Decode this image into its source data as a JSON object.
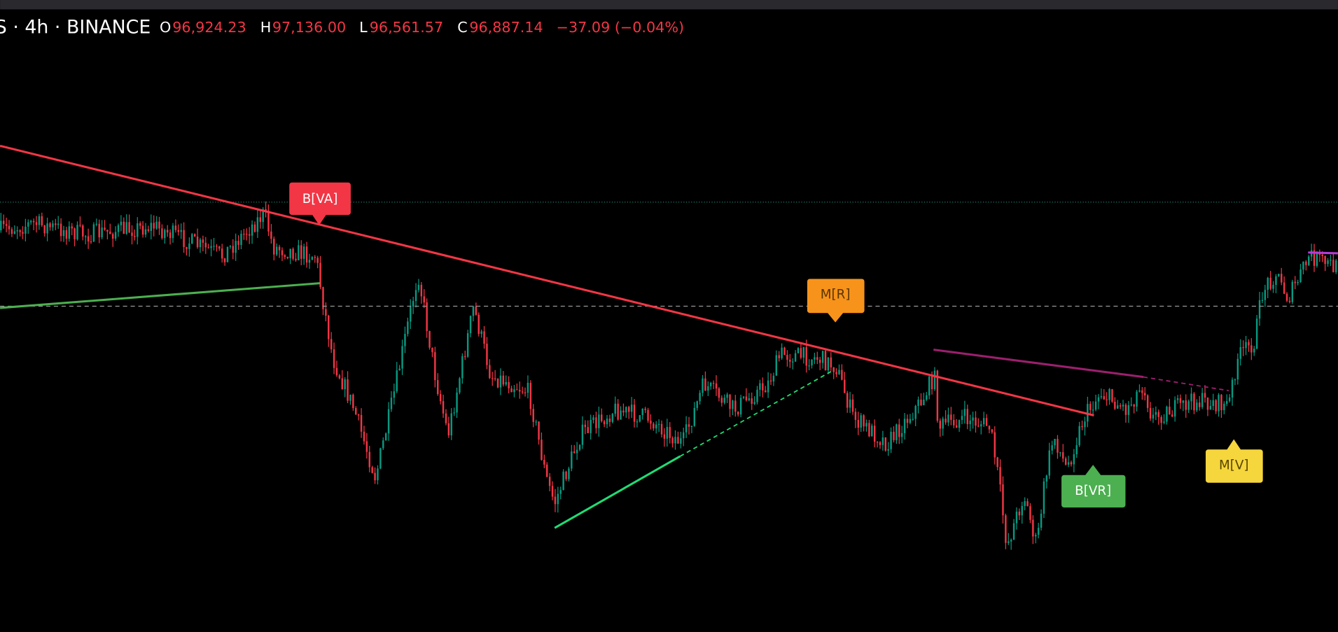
{
  "header": {
    "symbol": "S · 4h · BINANCE",
    "open_label": "O",
    "open": "96,924.23",
    "high_label": "H",
    "high": "97,136.00",
    "low_label": "L",
    "low": "96,561.57",
    "close_label": "C",
    "close": "96,887.14",
    "change": "−37.09 (−0.04%)"
  },
  "signals": [
    {
      "label": "B[VA]"
    },
    {
      "label": "M[R]"
    },
    {
      "label": "B[VR]"
    },
    {
      "label": "M[V]"
    }
  ]
}
